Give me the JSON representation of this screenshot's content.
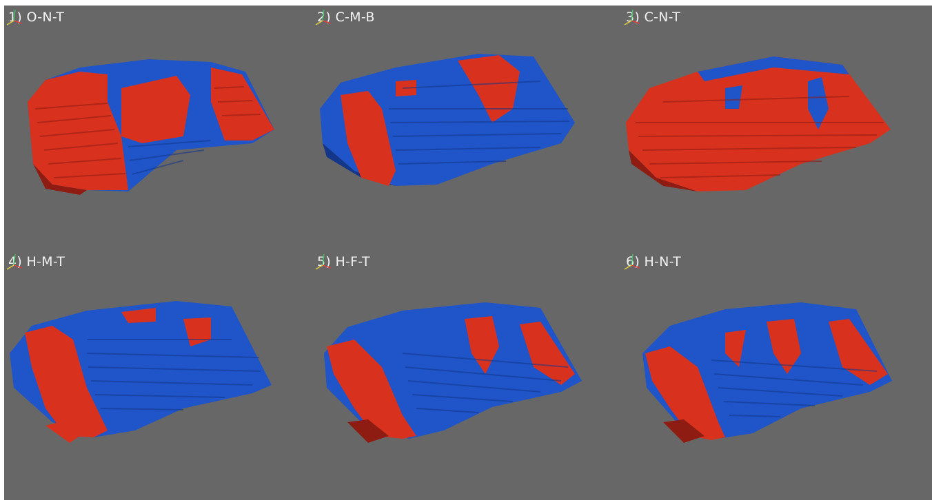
{
  "panels": [
    {
      "label": "1) O-N-T",
      "dominant": "red"
    },
    {
      "label": "2) C-M-B",
      "dominant": "blue"
    },
    {
      "label": "3) C-N-T",
      "dominant": "red"
    },
    {
      "label": "4) H-M-T",
      "dominant": "blue"
    },
    {
      "label": "5) H-F-T",
      "dominant": "blue"
    },
    {
      "label": "6) H-N-T",
      "dominant": "blue"
    }
  ],
  "colors": {
    "background": "#676767",
    "red": "#d8321e",
    "red_dark": "#8f1c12",
    "blue": "#1f55c8",
    "blue_dark": "#14378a",
    "axis_x": "#d84040",
    "axis_y": "#e0d040",
    "axis_z": "#40c060"
  },
  "icons": [
    "axes-orientation-icon"
  ]
}
